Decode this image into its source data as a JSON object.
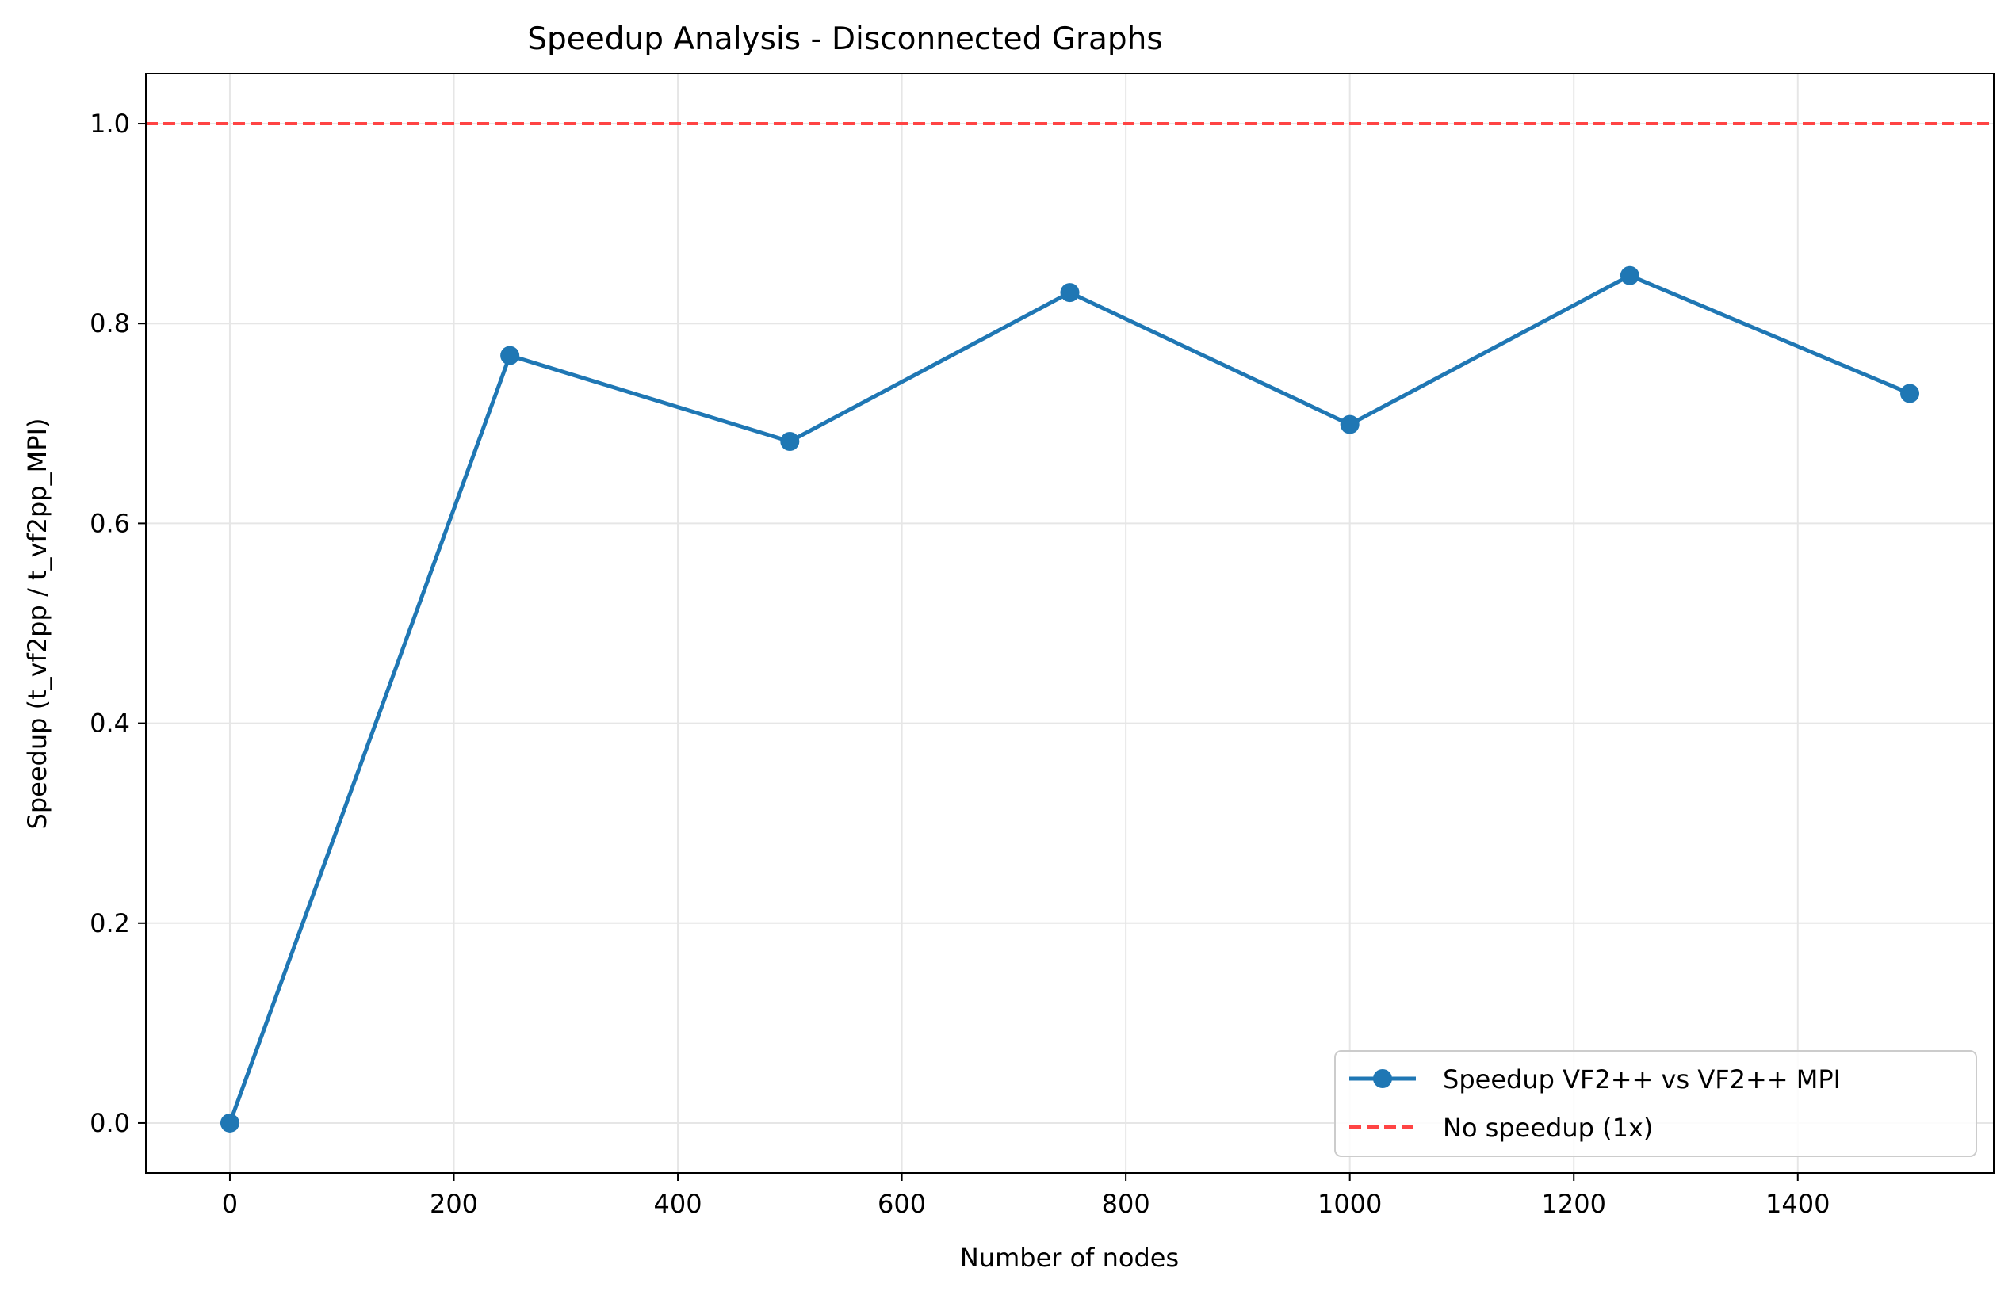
{
  "chart_data": {
    "type": "line",
    "title": "Speedup Analysis - Disconnected Graphs",
    "xlabel": "Number of nodes",
    "ylabel": "Speedup (t_vf2pp / t_vf2pp_MPI)",
    "xlim": [
      -75,
      1575
    ],
    "ylim": [
      -0.05,
      1.05
    ],
    "x_ticks": [
      0,
      200,
      400,
      600,
      800,
      1000,
      1200,
      1400
    ],
    "x_tick_labels": [
      "0",
      "200",
      "400",
      "600",
      "800",
      "1000",
      "1200",
      "1400"
    ],
    "y_ticks": [
      0.0,
      0.2,
      0.4,
      0.6,
      0.8,
      1.0
    ],
    "y_tick_labels": [
      "0.0",
      "0.2",
      "0.4",
      "0.6",
      "0.8",
      "1.0"
    ],
    "grid": true,
    "legend_position": "lower-right",
    "series": [
      {
        "name": "Speedup VF2++ vs VF2++ MPI",
        "style": "line-with-markers",
        "color": "#1f77b4",
        "x": [
          0,
          250,
          500,
          750,
          1000,
          1250,
          1500
        ],
        "y": [
          0.0,
          0.768,
          0.682,
          0.831,
          0.699,
          0.848,
          0.73
        ]
      }
    ],
    "reference_lines": [
      {
        "name": "No speedup (1x)",
        "orientation": "horizontal",
        "y": 1.0,
        "style": "dashed",
        "color": "#ff4444"
      }
    ]
  }
}
